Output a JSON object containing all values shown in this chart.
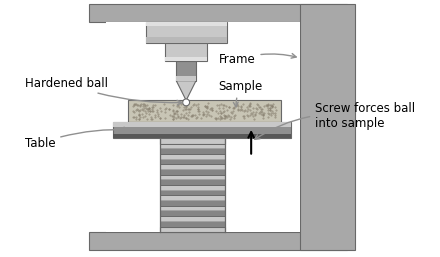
{
  "bg_color": "#ffffff",
  "gray": "#a8a8a8",
  "dgray": "#686868",
  "lgray": "#c8c8c8",
  "mgray": "#909090",
  "labels": {
    "hardened_ball": "Hardened ball",
    "frame": "Frame",
    "sample": "Sample",
    "table": "Table",
    "screw": "Screw forces ball\ninto sample"
  },
  "label_fontsize": 8.5,
  "figw": 4.4,
  "figh": 2.57,
  "dpi": 100
}
